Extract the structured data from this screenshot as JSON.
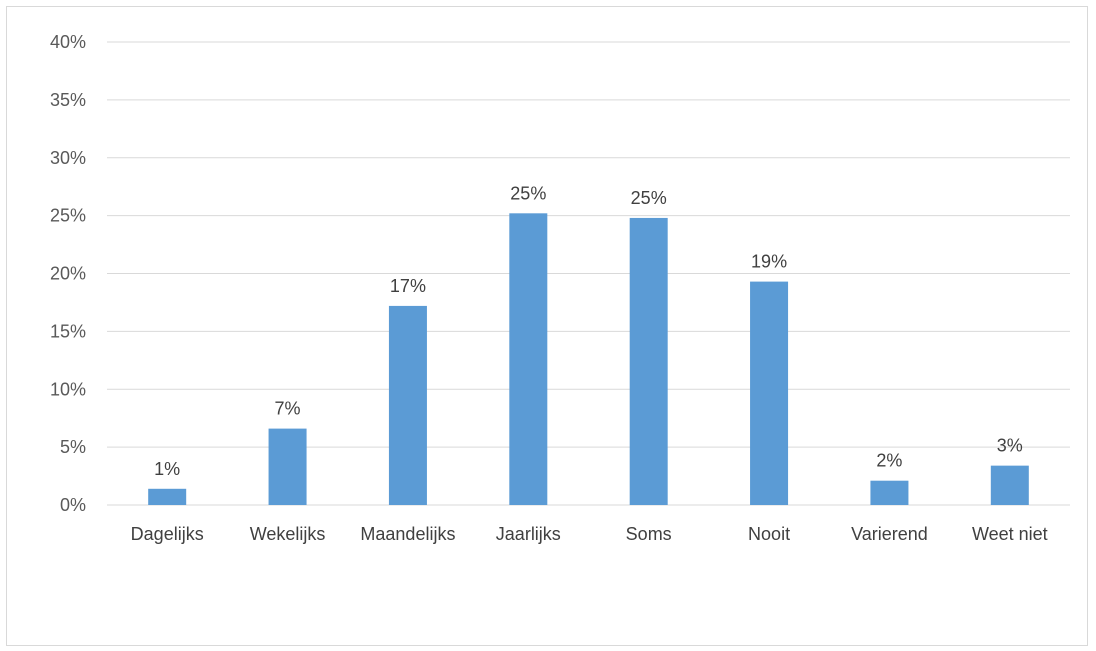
{
  "chart_data": {
    "type": "bar",
    "categories": [
      "Dagelijks",
      "Wekelijks",
      "Maandelijks",
      "Jaarlijks",
      "Soms",
      "Nooit",
      "Varierend",
      "Weet niet"
    ],
    "values": [
      1.4,
      6.6,
      17.2,
      25.2,
      24.8,
      19.3,
      2.1,
      3.4
    ],
    "data_labels": [
      "1%",
      "7%",
      "17%",
      "25%",
      "25%",
      "19%",
      "2%",
      "3%"
    ],
    "y_ticks": [
      "0%",
      "5%",
      "10%",
      "15%",
      "20%",
      "25%",
      "30%",
      "35%",
      "40%"
    ],
    "ylim": [
      0,
      40
    ],
    "y_unit": "%",
    "grid": true,
    "legend": "none",
    "bar_color": "#5b9bd5",
    "grid_color": "#d9d9d9"
  }
}
